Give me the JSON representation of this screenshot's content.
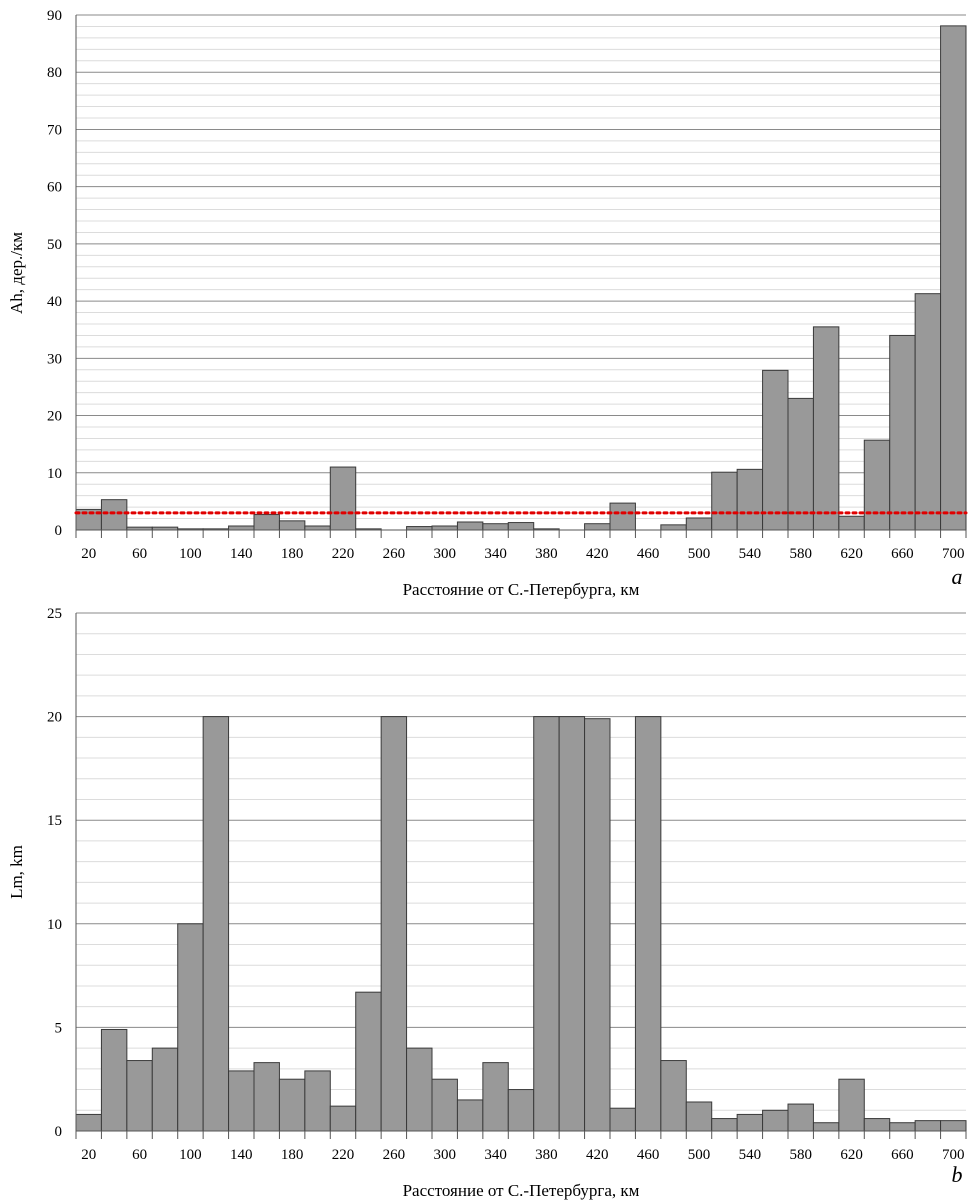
{
  "chart_data": [
    {
      "type": "bar",
      "panel_label": "a",
      "ylabel": "Ah, дер./км",
      "xlabel": "Расстояние от С.-Петербурга, км",
      "ylim": [
        0,
        90
      ],
      "y_major_ticks": [
        0,
        10,
        20,
        30,
        40,
        50,
        60,
        70,
        80,
        90
      ],
      "y_minor_step": 2,
      "x_tick_labels": [
        "20",
        "60",
        "100",
        "140",
        "180",
        "220",
        "260",
        "300",
        "340",
        "380",
        "420",
        "460",
        "500",
        "540",
        "580",
        "620",
        "660",
        "700"
      ],
      "categories": [
        20,
        40,
        60,
        80,
        100,
        120,
        140,
        160,
        180,
        200,
        220,
        240,
        260,
        280,
        300,
        320,
        340,
        360,
        380,
        400,
        420,
        440,
        460,
        480,
        500,
        520,
        540,
        560,
        580,
        600,
        620,
        640,
        660,
        680,
        700
      ],
      "values": [
        3.6,
        5.3,
        0.5,
        0.5,
        0.2,
        0.2,
        0.7,
        2.7,
        1.6,
        0.7,
        11.0,
        0.2,
        0,
        0.6,
        0.7,
        1.4,
        1.1,
        1.3,
        0.2,
        0,
        1.1,
        4.7,
        0,
        0.9,
        2.1,
        10.1,
        10.6,
        27.9,
        23.0,
        35.5,
        2.4,
        15.7,
        34.0,
        41.3,
        88.1
      ],
      "reference_line": {
        "value": 3.0,
        "style": "dotted",
        "color": "#e00000"
      },
      "bar_color": "#999999",
      "grid": true
    },
    {
      "type": "bar",
      "panel_label": "b",
      "ylabel": "Lm, km",
      "xlabel": "Расстояние от С.-Петербурга, км",
      "ylim": [
        0,
        25
      ],
      "y_major_ticks": [
        0,
        5,
        10,
        15,
        20,
        25
      ],
      "y_minor_step": 1,
      "x_tick_labels": [
        "20",
        "60",
        "100",
        "140",
        "180",
        "220",
        "260",
        "300",
        "340",
        "380",
        "420",
        "460",
        "500",
        "540",
        "580",
        "620",
        "660",
        "700"
      ],
      "categories": [
        20,
        40,
        60,
        80,
        100,
        120,
        140,
        160,
        180,
        200,
        220,
        240,
        260,
        280,
        300,
        320,
        340,
        360,
        380,
        400,
        420,
        440,
        460,
        480,
        500,
        520,
        540,
        560,
        580,
        600,
        620,
        640,
        660,
        680,
        700
      ],
      "values": [
        0.8,
        4.9,
        3.4,
        4.0,
        10.0,
        20.0,
        2.9,
        3.3,
        2.5,
        2.9,
        1.2,
        6.7,
        20.0,
        4.0,
        2.5,
        1.5,
        3.3,
        2.0,
        20.0,
        20.0,
        19.9,
        1.1,
        20.0,
        3.4,
        1.4,
        0.6,
        0.8,
        1.0,
        1.3,
        0.4,
        2.5,
        0.6,
        0.4,
        0.5,
        0.5
      ],
      "bar_color": "#999999",
      "grid": true
    }
  ]
}
